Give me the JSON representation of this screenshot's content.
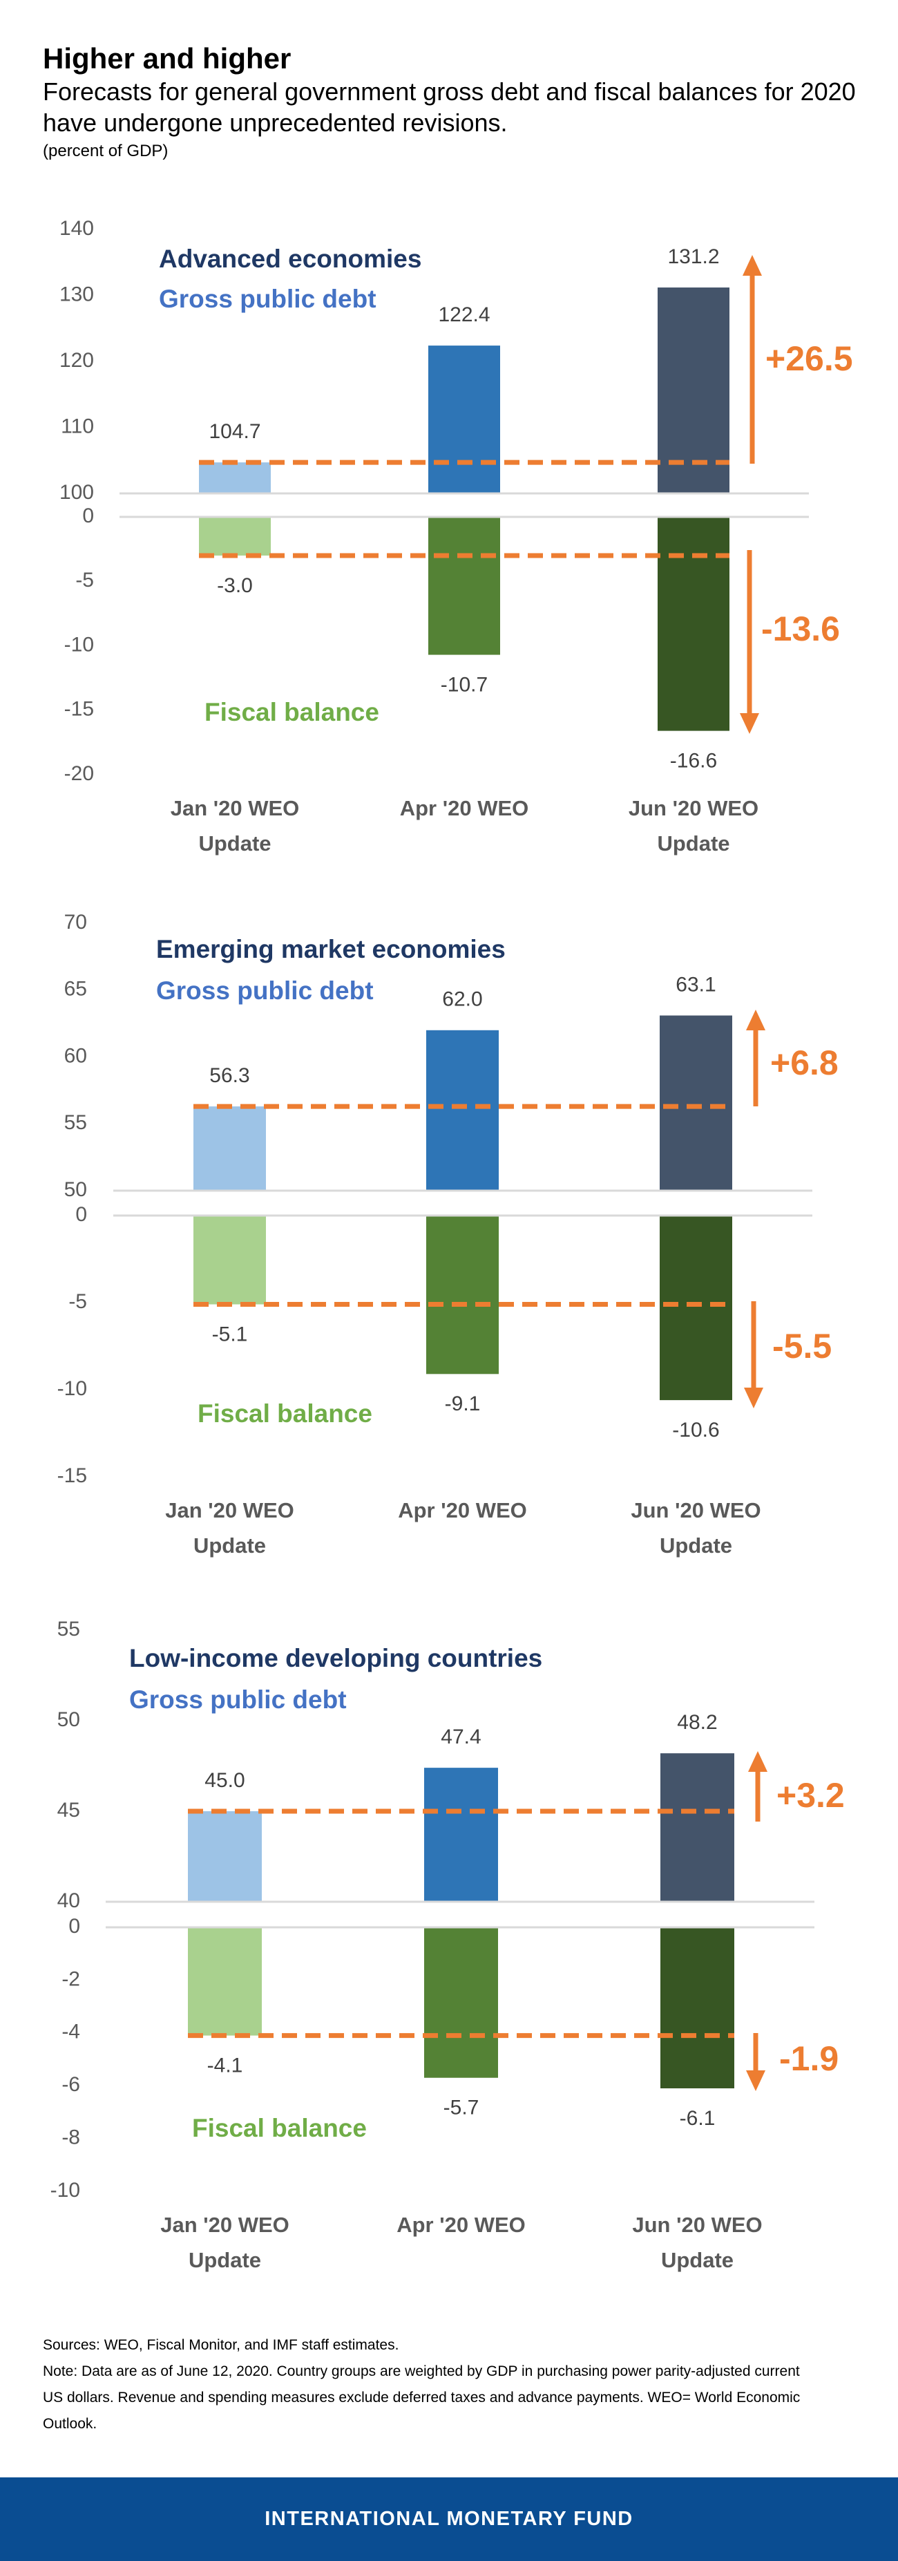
{
  "header": {
    "title": "Higher and higher",
    "subtitle": "Forecasts for general government gross debt and fiscal balances for 2020 have undergone unprecedented revisions.",
    "unit": "(percent of GDP)"
  },
  "colors": {
    "debt": [
      "#9dc3e6",
      "#2e75b6",
      "#44546a"
    ],
    "fiscal": [
      "#a9d18e",
      "#548235",
      "#375623"
    ],
    "accent": "#ed7d31",
    "group_title": "#1f3864",
    "debt_label": "#4472c4",
    "fiscal_label": "#70ad47",
    "footer": "#0a4d92"
  },
  "chart_data": [
    {
      "type": "bar",
      "title": "Advanced economies",
      "categories": [
        [
          "Jan '20 WEO",
          "Update"
        ],
        [
          "Apr '20 WEO"
        ],
        [
          "Jun '20 WEO",
          "Update"
        ]
      ],
      "series": [
        {
          "name": "Gross public debt",
          "values": [
            104.7,
            122.4,
            131.2
          ]
        },
        {
          "name": "Fiscal balance",
          "values": [
            -3.0,
            -10.7,
            -16.6
          ]
        }
      ],
      "debt_ylim": [
        100,
        140
      ],
      "debt_ticks": [
        100,
        110,
        120,
        130,
        140
      ],
      "fiscal_ylim": [
        -20,
        0
      ],
      "fiscal_ticks": [
        0,
        -5,
        -10,
        -15,
        -20
      ],
      "debt_change": "+26.5",
      "fiscal_change": "-13.6",
      "grid": false
    },
    {
      "type": "bar",
      "title": "Emerging market economies",
      "categories": [
        [
          "Jan '20 WEO",
          "Update"
        ],
        [
          "Apr '20 WEO"
        ],
        [
          "Jun '20 WEO",
          "Update"
        ]
      ],
      "series": [
        {
          "name": "Gross public debt",
          "values": [
            56.3,
            62.0,
            63.1
          ]
        },
        {
          "name": "Fiscal balance",
          "values": [
            -5.1,
            -9.1,
            -10.6
          ]
        }
      ],
      "debt_ylim": [
        50,
        70
      ],
      "debt_ticks": [
        50,
        55,
        60,
        65,
        70
      ],
      "fiscal_ylim": [
        -15,
        0
      ],
      "fiscal_ticks": [
        0,
        -5,
        -10,
        -15
      ],
      "debt_change": "+6.8",
      "fiscal_change": "-5.5",
      "grid": false
    },
    {
      "type": "bar",
      "title": "Low-income developing countries",
      "categories": [
        [
          "Jan '20 WEO",
          "Update"
        ],
        [
          "Apr '20 WEO"
        ],
        [
          "Jun '20 WEO",
          "Update"
        ]
      ],
      "series": [
        {
          "name": "Gross public debt",
          "values": [
            45.0,
            47.4,
            48.2
          ]
        },
        {
          "name": "Fiscal balance",
          "values": [
            -4.1,
            -5.7,
            -6.1
          ]
        }
      ],
      "debt_ylim": [
        40,
        55
      ],
      "debt_ticks": [
        40,
        45,
        50,
        55
      ],
      "fiscal_ylim": [
        -10,
        0
      ],
      "fiscal_ticks": [
        0,
        -2,
        -4,
        -6,
        -8,
        -10
      ],
      "debt_change": "+3.2",
      "fiscal_change": "-1.9",
      "grid": false
    }
  ],
  "notes": {
    "sources": "Sources: WEO, Fiscal Monitor, and IMF staff estimates.",
    "note": "Note: Data are as of June 12, 2020. Country groups are weighted by GDP in purchasing power parity-adjusted current US dollars. Revenue and spending measures exclude deferred taxes and advance payments. WEO= World Economic Outlook."
  },
  "footer": {
    "org": "INTERNATIONAL MONETARY FUND"
  }
}
